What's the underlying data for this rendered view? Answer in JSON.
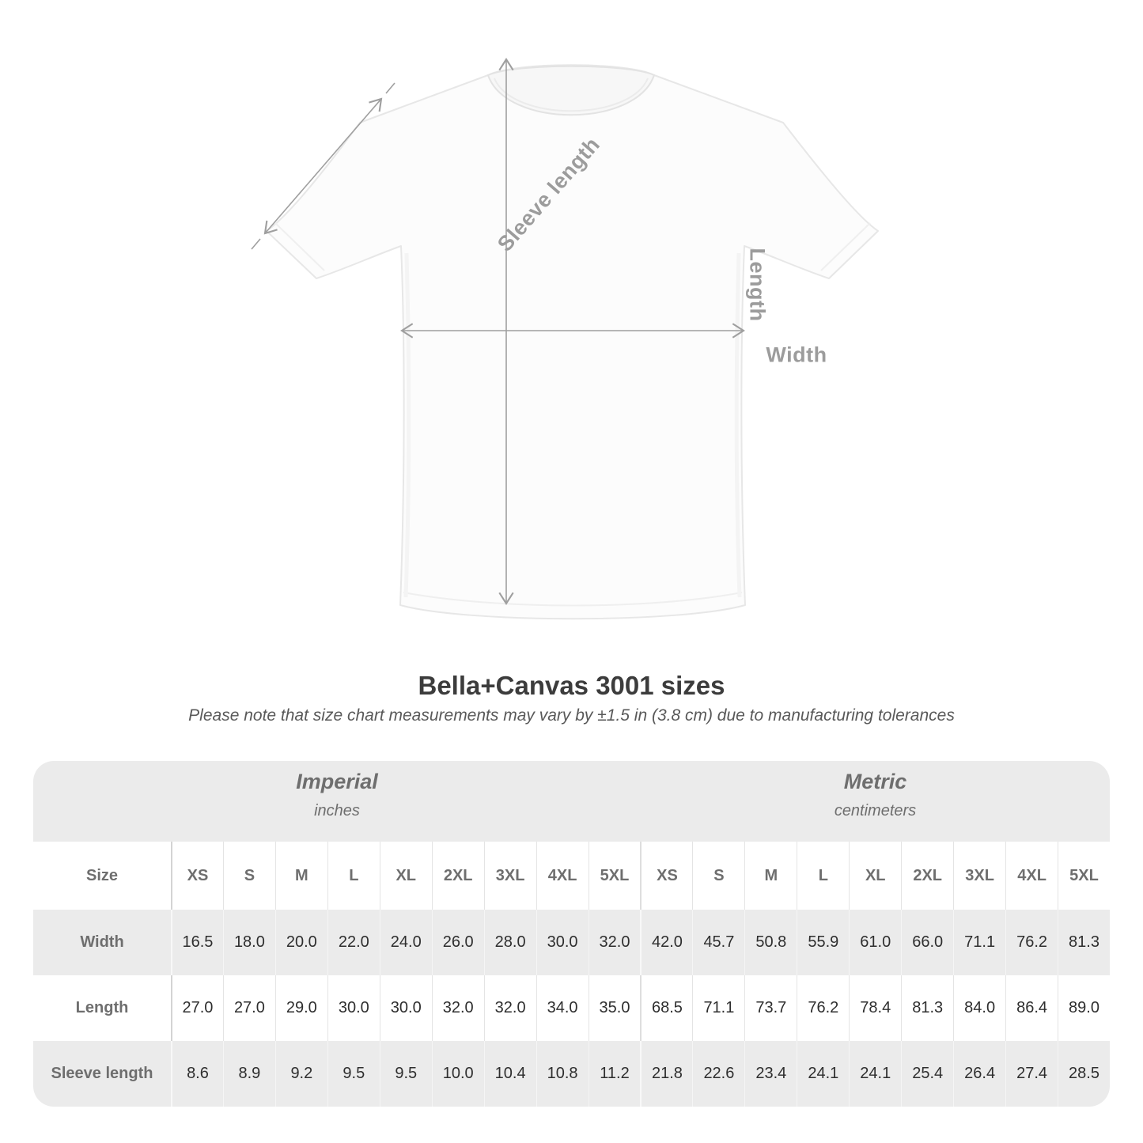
{
  "page": {
    "title": "Bella+Canvas 3001 sizes",
    "subtitle": "Please note that size chart measurements may vary by ±1.5 in (3.8 cm) due to manufacturing tolerances"
  },
  "diagram": {
    "sleeve_label": "Sleeve length",
    "length_label": "Length",
    "width_label": "Width"
  },
  "table": {
    "unit_groups": [
      {
        "name": "Imperial",
        "unit": "inches"
      },
      {
        "name": "Metric",
        "unit": "centimeters"
      }
    ],
    "size_label": "Size",
    "sizes": [
      "XS",
      "S",
      "M",
      "L",
      "XL",
      "2XL",
      "3XL",
      "4XL",
      "5XL"
    ],
    "rows": [
      {
        "label": "Width",
        "imperial": [
          "16.5",
          "18.0",
          "20.0",
          "22.0",
          "24.0",
          "26.0",
          "28.0",
          "30.0",
          "32.0"
        ],
        "metric": [
          "42.0",
          "45.7",
          "50.8",
          "55.9",
          "61.0",
          "66.0",
          "71.1",
          "76.2",
          "81.3"
        ]
      },
      {
        "label": "Length",
        "imperial": [
          "27.0",
          "27.0",
          "29.0",
          "30.0",
          "30.0",
          "32.0",
          "32.0",
          "34.0",
          "35.0"
        ],
        "metric": [
          "68.5",
          "71.1",
          "73.7",
          "76.2",
          "78.4",
          "81.3",
          "84.0",
          "86.4",
          "89.0"
        ]
      },
      {
        "label": "Sleeve length",
        "imperial": [
          "8.6",
          "8.9",
          "9.2",
          "9.5",
          "9.5",
          "10.0",
          "10.4",
          "10.8",
          "11.2"
        ],
        "metric": [
          "21.8",
          "22.6",
          "23.4",
          "24.1",
          "24.1",
          "25.4",
          "26.4",
          "27.4",
          "28.5"
        ]
      }
    ]
  },
  "colors": {
    "band_gray": "#ebebeb",
    "header_text": "#6e6e6e",
    "value_text": "#2e2e2e",
    "annotation_gray": "#9c9c9c",
    "title_text": "#3c3c3c"
  },
  "chart_data": {
    "type": "table",
    "title": "Bella+Canvas 3001 sizes",
    "note": "Please note that size chart measurements may vary by ±1.5 in (3.8 cm) due to manufacturing tolerances",
    "column_groups": [
      "Imperial (inches)",
      "Metric (centimeters)"
    ],
    "sizes": [
      "XS",
      "S",
      "M",
      "L",
      "XL",
      "2XL",
      "3XL",
      "4XL",
      "5XL"
    ],
    "rows": [
      {
        "measurement": "Width",
        "imperial_in": [
          16.5,
          18.0,
          20.0,
          22.0,
          24.0,
          26.0,
          28.0,
          30.0,
          32.0
        ],
        "metric_cm": [
          42.0,
          45.7,
          50.8,
          55.9,
          61.0,
          66.0,
          71.1,
          76.2,
          81.3
        ]
      },
      {
        "measurement": "Length",
        "imperial_in": [
          27.0,
          27.0,
          29.0,
          30.0,
          30.0,
          32.0,
          32.0,
          34.0,
          35.0
        ],
        "metric_cm": [
          68.5,
          71.1,
          73.7,
          76.2,
          78.4,
          81.3,
          84.0,
          86.4,
          89.0
        ]
      },
      {
        "measurement": "Sleeve length",
        "imperial_in": [
          8.6,
          8.9,
          9.2,
          9.5,
          9.5,
          10.0,
          10.4,
          10.8,
          11.2
        ],
        "metric_cm": [
          21.8,
          22.6,
          23.4,
          24.1,
          24.1,
          25.4,
          26.4,
          27.4,
          28.5
        ]
      }
    ],
    "diagram_annotations": [
      "Sleeve length",
      "Length",
      "Width"
    ]
  }
}
